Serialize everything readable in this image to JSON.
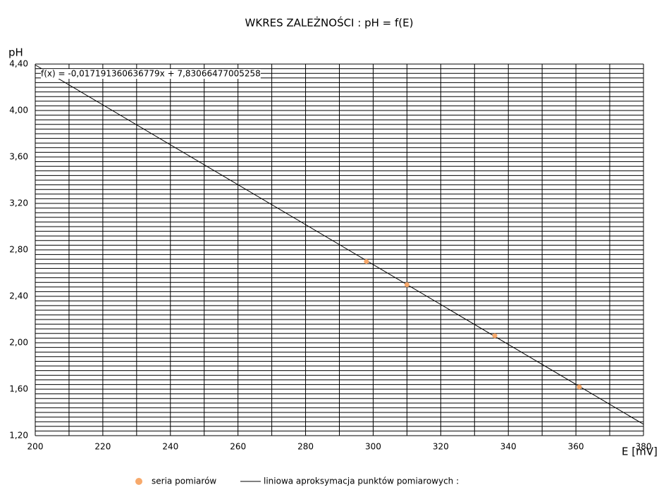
{
  "chart_data": {
    "type": "scatter",
    "title": "WKRES ZALEŻNOŚCI : pH = f(E)",
    "x_label": "E [mV]",
    "y_label": "pH",
    "series": [
      {
        "name": "seria pomiarów",
        "color": "#f7a96b",
        "x": [
          298,
          310,
          336,
          361
        ],
        "values": [
          2.7,
          2.5,
          2.06,
          1.62
        ]
      }
    ],
    "trendline": {
      "name": "liniowa aproksymacja punktów pomiarowych :",
      "color": "#000000",
      "slope": -0.017191360636779,
      "intercept": 7.83066477005258,
      "label": "f(x) = -0,017191360636779x + 7,83066477005258"
    },
    "xlim": [
      200,
      380
    ],
    "ylim": [
      1.2,
      4.4
    ],
    "xticks": [
      200,
      220,
      240,
      260,
      280,
      300,
      320,
      340,
      360,
      380
    ],
    "yticks": [
      {
        "value": 1.2,
        "label": "1,20"
      },
      {
        "value": 1.6,
        "label": "1,60"
      },
      {
        "value": 2.0,
        "label": "2,00"
      },
      {
        "value": 2.4,
        "label": "2,40"
      },
      {
        "value": 2.8,
        "label": "2,80"
      },
      {
        "value": 3.2,
        "label": "3,20"
      },
      {
        "value": 3.6,
        "label": "3,60"
      },
      {
        "value": 4.0,
        "label": "4,00"
      },
      {
        "value": 4.4,
        "label": "4,40"
      }
    ],
    "xgrid": [
      200,
      210,
      220,
      230,
      240,
      250,
      260,
      270,
      280,
      290,
      300,
      310,
      320,
      330,
      340,
      350,
      360,
      370,
      380
    ],
    "ygrid": [
      1.2,
      1.24,
      1.28,
      1.32,
      1.36,
      1.4,
      1.44,
      1.48,
      1.52,
      1.56,
      1.6,
      1.64,
      1.68,
      1.72,
      1.76,
      1.8,
      1.84,
      1.88,
      1.92,
      1.96,
      2.0,
      2.04,
      2.08,
      2.12,
      2.16,
      2.2,
      2.24,
      2.28,
      2.32,
      2.36,
      2.4,
      2.44,
      2.48,
      2.52,
      2.56,
      2.6,
      2.64,
      2.68,
      2.72,
      2.76,
      2.8,
      2.84,
      2.88,
      2.92,
      2.96,
      3.0,
      3.04,
      3.08,
      3.12,
      3.16,
      3.2,
      3.24,
      3.28,
      3.32,
      3.36,
      3.4,
      3.44,
      3.48,
      3.52,
      3.56,
      3.6,
      3.64,
      3.68,
      3.72,
      3.76,
      3.8,
      3.84,
      3.88,
      3.92,
      3.96,
      4.0,
      4.04,
      4.08,
      4.12,
      4.16,
      4.2,
      4.24,
      4.28,
      4.32,
      4.36,
      4.4
    ],
    "grid": true,
    "legend": "bottom"
  }
}
